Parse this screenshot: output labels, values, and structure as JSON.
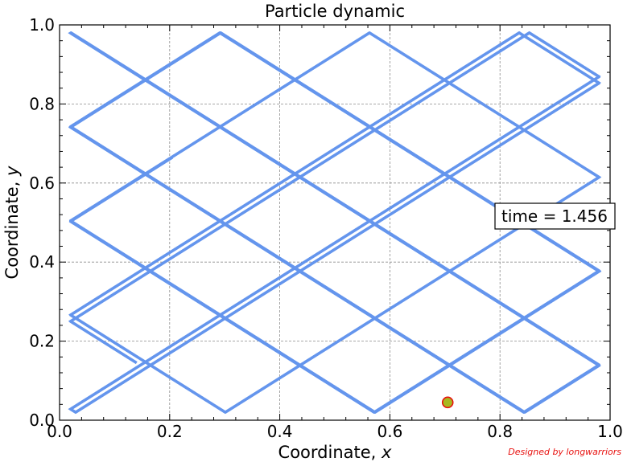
{
  "chart_data": {
    "type": "line",
    "title": "Particle dynamic",
    "xlabel_text": "Coordinate, ",
    "xlabel_var": "x",
    "ylabel_text": "Coordinate, ",
    "ylabel_var": "y",
    "xlim": [
      0,
      1
    ],
    "ylim": [
      0,
      1
    ],
    "xticks": [
      0.0,
      0.2,
      0.4,
      0.6,
      0.8,
      1.0
    ],
    "yticks": [
      0.0,
      0.2,
      0.4,
      0.6,
      0.8,
      1.0
    ],
    "xtick_labels": [
      "0.0",
      "0.2",
      "0.4",
      "0.6",
      "0.8",
      "1.0"
    ],
    "ytick_labels": [
      "0.0",
      "0.2",
      "0.4",
      "0.6",
      "0.8",
      "1.0"
    ],
    "grid": true,
    "series": [
      {
        "color": "#6495ed",
        "points": [
          [
            0.205,
            0.665
          ],
          [
            0.07,
            0.46
          ],
          [
            0.02,
            0.39
          ],
          [
            0.285,
            0.02
          ],
          [
            0.37,
            0.14
          ],
          [
            0.665,
            0.56
          ],
          [
            0.97,
            0.98
          ],
          [
            0.995,
            0.95
          ],
          [
            0.705,
            0.045
          ]
        ]
      }
    ],
    "particle": {
      "x": 0.705,
      "y": 0.045,
      "fill": "#a8b820",
      "edge": "#e8110f"
    },
    "annotation": "time = 1.456",
    "credit": "Designed by longwarriors"
  }
}
